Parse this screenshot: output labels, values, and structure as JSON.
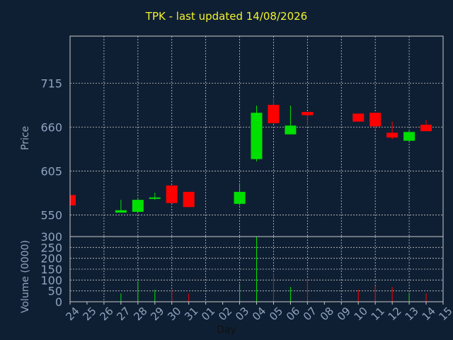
{
  "title": "TPK - last updated 14/08/2026",
  "chart_data": {
    "type": "candlestick",
    "title": "TPK - last updated 14/08/2026",
    "xlabel": "Day",
    "days": [
      "24",
      "25",
      "26",
      "27",
      "28",
      "29",
      "30",
      "31",
      "01",
      "02",
      "03",
      "04",
      "05",
      "06",
      "07",
      "08",
      "09",
      "10",
      "11",
      "12",
      "13",
      "14",
      "15"
    ],
    "price": {
      "ylabel": "Price",
      "yticks": [
        550,
        605,
        660,
        715
      ],
      "ylim": [
        523,
        774
      ],
      "candles": [
        {
          "day": "24",
          "open": 575,
          "close": 562,
          "high": 575,
          "low": 562
        },
        {
          "day": "27",
          "open": 553,
          "close": 556,
          "high": 569,
          "low": 553
        },
        {
          "day": "28",
          "open": 554,
          "close": 569,
          "high": 571,
          "low": 554
        },
        {
          "day": "29",
          "open": 571,
          "close": 572,
          "high": 578,
          "low": 569
        },
        {
          "day": "30",
          "open": 587,
          "close": 565,
          "high": 587,
          "low": 565
        },
        {
          "day": "31",
          "open": 579,
          "close": 560,
          "high": 579,
          "low": 560
        },
        {
          "day": "03",
          "open": 564,
          "close": 579,
          "high": 590,
          "low": 562
        },
        {
          "day": "04",
          "open": 620,
          "close": 678,
          "high": 687,
          "low": 617
        },
        {
          "day": "05",
          "open": 688,
          "close": 665,
          "high": 697,
          "low": 665
        },
        {
          "day": "06",
          "open": 651,
          "close": 662,
          "high": 687,
          "low": 651
        },
        {
          "day": "07",
          "open": 679,
          "close": 675,
          "high": 679,
          "low": 662
        },
        {
          "day": "10",
          "open": 677,
          "close": 667,
          "high": 677,
          "low": 667
        },
        {
          "day": "11",
          "open": 678,
          "close": 661,
          "high": 678,
          "low": 657
        },
        {
          "day": "12",
          "open": 653,
          "close": 647,
          "high": 667,
          "low": 645
        },
        {
          "day": "13",
          "open": 643,
          "close": 654,
          "high": 657,
          "low": 643
        },
        {
          "day": "14",
          "open": 663,
          "close": 655,
          "high": 669,
          "low": 655
        }
      ]
    },
    "volume": {
      "ylabel": "Volume (0000)",
      "yticks": [
        0,
        50,
        100,
        150,
        200,
        250,
        300
      ],
      "ylim": [
        0,
        300
      ],
      "bars": [
        {
          "day": "27",
          "value": 38,
          "color": "green"
        },
        {
          "day": "28",
          "value": 95,
          "color": "green"
        },
        {
          "day": "29",
          "value": 55,
          "color": "green"
        },
        {
          "day": "30",
          "value": 55,
          "color": "red"
        },
        {
          "day": "31",
          "value": 38,
          "color": "red"
        },
        {
          "day": "03",
          "value": 82,
          "color": "green"
        },
        {
          "day": "04",
          "value": 300,
          "color": "green"
        },
        {
          "day": "05",
          "value": 130,
          "color": "red"
        },
        {
          "day": "06",
          "value": 68,
          "color": "green"
        },
        {
          "day": "07",
          "value": 105,
          "color": "red"
        },
        {
          "day": "10",
          "value": 55,
          "color": "red"
        },
        {
          "day": "11",
          "value": 72,
          "color": "red"
        },
        {
          "day": "12",
          "value": 68,
          "color": "red"
        },
        {
          "day": "13",
          "value": 42,
          "color": "green"
        },
        {
          "day": "14",
          "value": 38,
          "color": "red"
        }
      ]
    },
    "colors": {
      "up": "#00e000",
      "down": "#ff0000",
      "grid": "#c8c8c8",
      "axis": "#8fa3bf",
      "title": "#f2f22e",
      "background": "#0f1f33"
    }
  }
}
